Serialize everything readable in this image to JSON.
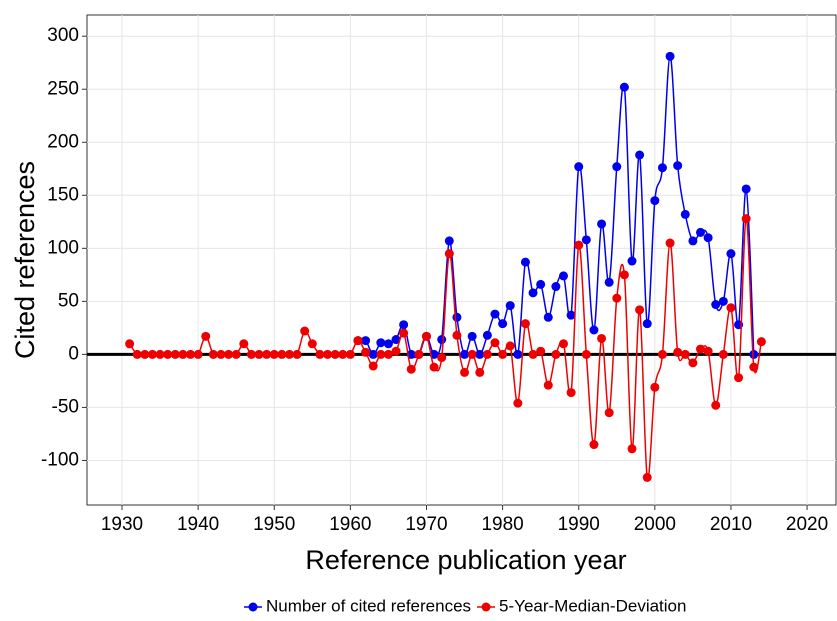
{
  "chart_data": {
    "type": "line",
    "x_label": "Reference publication year",
    "y_label": "Cited references",
    "x": [
      1931,
      1932,
      1933,
      1934,
      1935,
      1936,
      1937,
      1938,
      1939,
      1940,
      1941,
      1942,
      1943,
      1944,
      1945,
      1946,
      1947,
      1948,
      1949,
      1950,
      1951,
      1952,
      1953,
      1954,
      1955,
      1956,
      1957,
      1958,
      1959,
      1960,
      1961,
      1962,
      1963,
      1964,
      1965,
      1966,
      1967,
      1968,
      1969,
      1970,
      1971,
      1972,
      1973,
      1974,
      1975,
      1976,
      1977,
      1978,
      1979,
      1980,
      1981,
      1982,
      1983,
      1984,
      1985,
      1986,
      1987,
      1988,
      1989,
      1990,
      1991,
      1992,
      1993,
      1994,
      1995,
      1996,
      1997,
      1998,
      1999,
      2000,
      2001,
      2002,
      2003,
      2004,
      2005,
      2006,
      2007,
      2008,
      2009,
      2010,
      2011,
      2012,
      2013,
      2014
    ],
    "series": [
      {
        "name": "Number of cited references",
        "color": "#0000ee",
        "values": [
          null,
          null,
          null,
          null,
          null,
          null,
          null,
          null,
          null,
          null,
          null,
          null,
          null,
          null,
          null,
          null,
          null,
          null,
          null,
          null,
          null,
          null,
          null,
          null,
          null,
          null,
          null,
          null,
          null,
          null,
          13,
          13,
          0,
          11,
          10,
          14,
          28,
          0,
          0,
          17,
          0,
          14,
          107,
          35,
          0,
          17,
          0,
          18,
          38,
          29,
          46,
          0,
          87,
          58,
          66,
          35,
          64,
          74,
          37,
          177,
          108,
          23,
          123,
          68,
          177,
          252,
          88,
          188,
          29,
          145,
          176,
          281,
          178,
          132,
          107,
          115,
          110,
          47,
          50,
          95,
          28,
          156,
          0,
          null
        ]
      },
      {
        "name": "5-Year-Median-Deviation",
        "color": "#ee0000",
        "values": [
          10,
          0,
          0,
          0,
          0,
          0,
          0,
          0,
          0,
          0,
          17,
          0,
          0,
          0,
          0,
          10,
          0,
          0,
          0,
          0,
          0,
          0,
          0,
          22,
          10,
          0,
          0,
          0,
          0,
          0,
          13,
          2,
          -11,
          0,
          0,
          3,
          20,
          -14,
          0,
          17,
          -12,
          -3,
          95,
          18,
          -17,
          0,
          -17,
          0,
          11,
          0,
          8,
          -46,
          29,
          0,
          3,
          -29,
          0,
          10,
          -36,
          103,
          0,
          -85,
          15,
          -55,
          53,
          75,
          -89,
          42,
          -116,
          -31,
          0,
          105,
          2,
          0,
          -8,
          5,
          3,
          -48,
          0,
          44,
          -22,
          128,
          -12,
          12
        ]
      }
    ],
    "xlim": [
      1925.4,
      2023.8
    ],
    "xticks": [
      1930,
      1940,
      1950,
      1960,
      1970,
      1980,
      1990,
      2000,
      2010,
      2020
    ],
    "ylim": [
      -142,
      320
    ],
    "yticks": [
      -100,
      -50,
      0,
      50,
      100,
      150,
      200,
      250,
      300
    ],
    "hline": 0,
    "grid": true,
    "legend": "bottom"
  }
}
